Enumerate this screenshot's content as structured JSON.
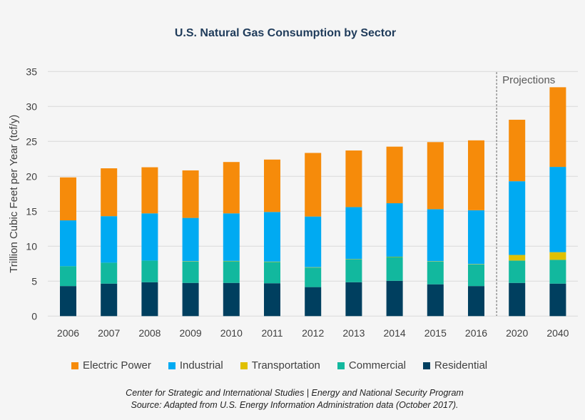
{
  "chart_data": {
    "type": "bar",
    "stacked": true,
    "title": "U.S. Natural Gas Consumption by Sector",
    "xlabel": "",
    "ylabel": "Trillion Cubic Feet per Year (tcf/y)",
    "ylim": [
      0,
      35
    ],
    "yticks": [
      0,
      5,
      10,
      15,
      20,
      25,
      30,
      35
    ],
    "grid": true,
    "legend_position": "bottom",
    "categories": [
      "2006",
      "2007",
      "2008",
      "2009",
      "2010",
      "2011",
      "2012",
      "2013",
      "2014",
      "2015",
      "2016",
      "2020",
      "2040"
    ],
    "annotation": "Projections",
    "series": [
      {
        "name": "Residential",
        "color": "#003f5f",
        "values": [
          4.3,
          4.65,
          4.85,
          4.75,
          4.75,
          4.7,
          4.15,
          4.85,
          5.05,
          4.55,
          4.3,
          4.75,
          4.65
        ]
      },
      {
        "name": "Commercial",
        "color": "#12b89e",
        "values": [
          2.85,
          3.0,
          3.1,
          3.05,
          3.1,
          3.05,
          2.8,
          3.25,
          3.4,
          3.25,
          3.1,
          3.2,
          3.4
        ]
      },
      {
        "name": "Transportation",
        "color": "#e0c000",
        "values": [
          0,
          0,
          0,
          0.05,
          0.05,
          0.05,
          0.05,
          0.05,
          0.05,
          0.05,
          0.05,
          0.8,
          1.1
        ]
      },
      {
        "name": "Industrial",
        "color": "#00aaf2",
        "values": [
          6.55,
          6.65,
          6.75,
          6.2,
          6.8,
          7.1,
          7.25,
          7.45,
          7.65,
          7.45,
          7.7,
          10.55,
          12.2
        ]
      },
      {
        "name": "Electric Power",
        "color": "#f68b0a",
        "values": [
          6.15,
          6.85,
          6.6,
          6.8,
          7.35,
          7.5,
          9.1,
          8.1,
          8.1,
          9.6,
          10.0,
          8.8,
          11.4
        ]
      }
    ],
    "legend_order": [
      "Electric Power",
      "Industrial",
      "Transportation",
      "Commercial",
      "Residential"
    ]
  },
  "footer": {
    "line1": "Center for Strategic and International Studies | Energy and National Security Program",
    "line2": "Source: Adapted from U.S. Energy Information Administration data (October 2017)."
  }
}
